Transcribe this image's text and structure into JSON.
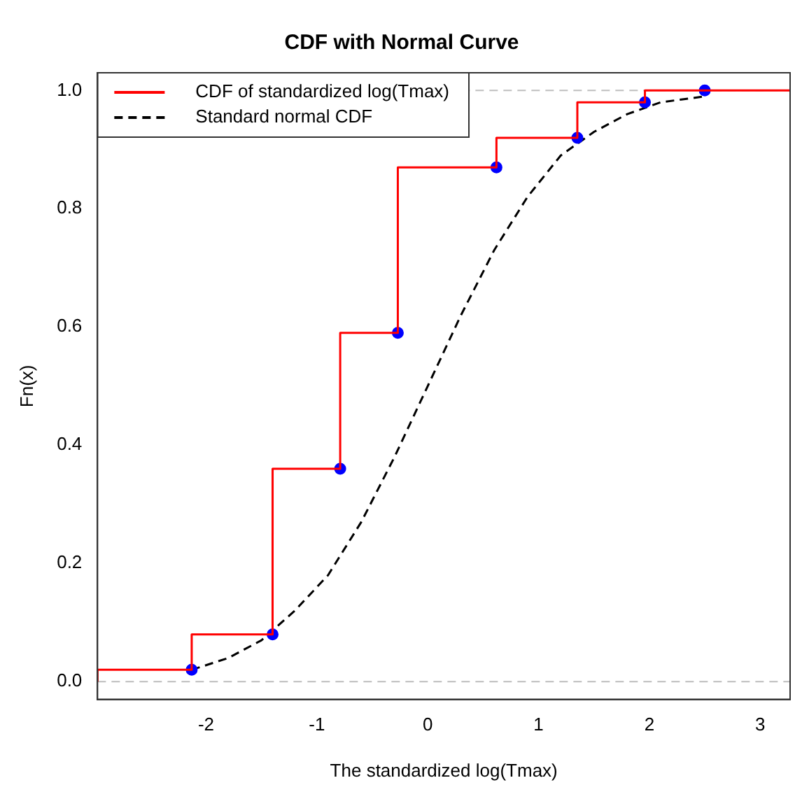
{
  "chart_data": {
    "type": "step",
    "title": "CDF with Normal Curve",
    "xlabel": "The standardized log(Tmax)",
    "ylabel": "Fn(x)",
    "xlim": [
      -2.98,
      3.27
    ],
    "xticks": [
      -2,
      -1,
      0,
      1,
      2,
      3
    ],
    "ylim": [
      -0.03,
      1.03
    ],
    "yticks": [
      {
        "value": 0,
        "label": "0.0"
      },
      0.2,
      0.4,
      0.6,
      0.8,
      {
        "value": 1,
        "label": "1.0"
      }
    ],
    "grid": false,
    "legend": "top left",
    "ref_lines": [
      {
        "axis": "y",
        "value": 0,
        "color": "#bebebe",
        "line_style": "dashed"
      },
      {
        "axis": "y",
        "value": 1,
        "color": "#bebebe",
        "line_style": "dashed"
      }
    ],
    "series": [
      {
        "name": "CDF of standardized log(Tmax)",
        "color": "#ff0000",
        "marker": "none",
        "line_style": "solid",
        "x": [
          -2.98,
          -2.13,
          -1.4,
          -0.79,
          -0.27,
          0.62,
          1.35,
          1.96,
          2.5,
          3.27
        ],
        "values": [
          0,
          0.02,
          0.08,
          0.36,
          0.59,
          0.87,
          0.92,
          0.98,
          1,
          1
        ]
      },
      {
        "type": "scatter",
        "color": "#0000ff",
        "marker": "circle",
        "x": [
          -2.13,
          -1.4,
          -0.79,
          -0.27,
          0.62,
          1.35,
          1.96,
          2.5
        ],
        "values": [
          0.02,
          0.08,
          0.36,
          0.59,
          0.87,
          0.92,
          0.98,
          1
        ]
      },
      {
        "type": "line",
        "name": "Standard normal CDF",
        "color": "#000000",
        "marker": "none",
        "line_style": "dashed",
        "x": [
          -2.13,
          -1.8,
          -1.5,
          -1.2,
          -0.9,
          -0.6,
          -0.3,
          0,
          0.3,
          0.6,
          0.9,
          1.2,
          1.5,
          1.8,
          2.1,
          2.5
        ],
        "values": [
          0.02,
          0.04,
          0.07,
          0.12,
          0.18,
          0.27,
          0.38,
          0.5,
          0.62,
          0.73,
          0.82,
          0.89,
          0.93,
          0.96,
          0.98,
          0.99
        ]
      }
    ]
  }
}
